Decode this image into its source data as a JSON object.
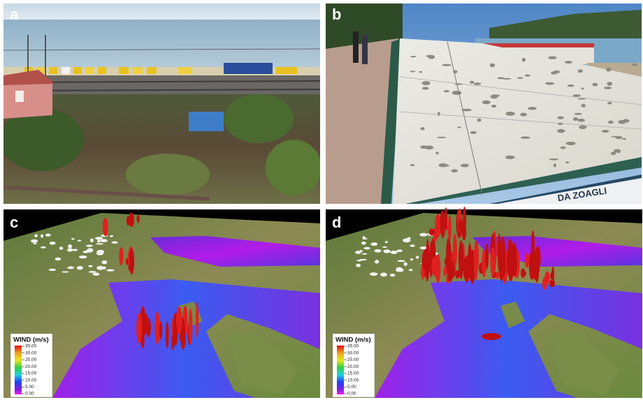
{
  "panels": [
    {
      "label": "a"
    },
    {
      "label": "b"
    },
    {
      "label": "c"
    },
    {
      "label": "d"
    }
  ],
  "sign": {
    "text": "DA ZOAGLI"
  },
  "legend": {
    "title": "WIND (m/s)",
    "ticks": [
      "35.00",
      "30.00",
      "25.00",
      "20.00",
      "15.00",
      "10.00",
      "5.00",
      "0.00"
    ]
  }
}
